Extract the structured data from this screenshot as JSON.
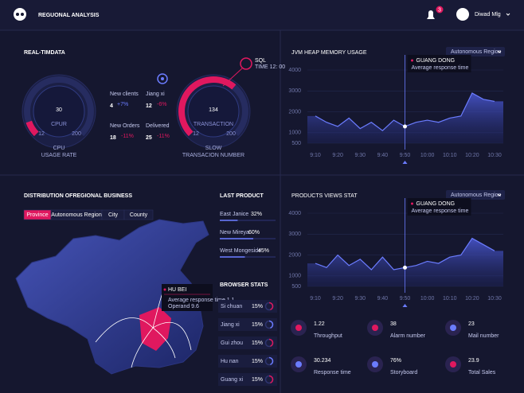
{
  "header": {
    "title": "REGUONAL ANALYSIS",
    "badge": "3",
    "user": "Diwad Mlg"
  },
  "realtime": {
    "title": "REAL-TIMDATA",
    "gauges": [
      {
        "value": 30,
        "min": 12,
        "max": 200,
        "inner": "CPUR",
        "label": [
          "CPU",
          "USAGE RATE"
        ]
      },
      {
        "value": 134,
        "min": 12,
        "max": 200,
        "inner": "TRANSACTION",
        "label": [
          "SLOW",
          "TRANSACION NUMBER"
        ]
      }
    ],
    "stats": [
      {
        "name": "New clients",
        "value": "4",
        "change": "+7%"
      },
      {
        "name": "Jiang xi",
        "value": "12",
        "change": "-6%"
      },
      {
        "name": "New Orders",
        "value": "18",
        "change": "-11%"
      },
      {
        "name": "Delivered",
        "value": "25",
        "change": "-11%"
      }
    ],
    "sql": {
      "title": "SQL",
      "time": "TIME 12: 00"
    }
  },
  "chart_data": [
    {
      "type": "line",
      "title": "JVM HEAP MEMORY USAGE",
      "dropdown": "Autonomous Region",
      "color": "#6b7cff",
      "categories": [
        "9:10",
        null,
        "9:20",
        null,
        "9:30",
        null,
        "9:40",
        null,
        "9:50",
        null,
        "10:00",
        null,
        "10:10",
        null,
        "10:20",
        null,
        "10:30"
      ],
      "values": [
        1800,
        1500,
        1300,
        1700,
        1200,
        1500,
        1100,
        1600,
        1300,
        1500,
        1600,
        1500,
        1700,
        1800,
        2900,
        2600,
        2500
      ],
      "ylim": [
        500,
        4000
      ],
      "yticks": [
        4000,
        3000,
        2000,
        1000,
        500
      ],
      "tooltip": {
        "title": "GUANG DONG",
        "text": "Average response time"
      }
    },
    {
      "type": "line",
      "title": "PRODUCTS VIEWS STAT",
      "dropdown": "Autonomous Region",
      "color": "#6b7cff",
      "categories": [
        "9:10",
        null,
        "9:20",
        null,
        "9:30",
        null,
        "9:40",
        null,
        "9:50",
        null,
        "10:00",
        null,
        "10:10",
        null,
        "10:20",
        null,
        "10:30"
      ],
      "values": [
        1600,
        1400,
        2000,
        1500,
        1800,
        1300,
        1900,
        1300,
        1400,
        1500,
        1700,
        1600,
        1900,
        2000,
        2800,
        2500,
        2200
      ],
      "ylim": [
        500,
        4000
      ],
      "yticks": [
        4000,
        3000,
        2000,
        1000,
        500
      ],
      "tooltip": {
        "title": "GUANG DONG",
        "text": "Average response time"
      }
    }
  ],
  "map": {
    "title": "DISTRIBUTION OFREGIONAL BUSINESS",
    "tabs": [
      "Province",
      "Autonomous Region",
      "City",
      "County"
    ],
    "tooltip": {
      "title": "HU BEI",
      "lines": [
        "Average response time 1.1",
        "Operand 9.6"
      ]
    }
  },
  "products": {
    "title": "LAST PRODUCT",
    "items": [
      {
        "name": "East Janice",
        "value": 32,
        "label": "32%"
      },
      {
        "name": "New Mireya",
        "value": 60,
        "label": "60%"
      },
      {
        "name": "West Mongeside",
        "value": 45,
        "label": "45%"
      }
    ]
  },
  "browser": {
    "title": "BROWSER STATS",
    "items": [
      {
        "name": "Si chuan",
        "value": 15,
        "label": "15%"
      },
      {
        "name": "Jiang xi",
        "value": 15,
        "label": "15%"
      },
      {
        "name": "Gui zhou",
        "value": 15,
        "label": "15%"
      },
      {
        "name": "Hu nan",
        "value": 15,
        "label": "15%"
      },
      {
        "name": "Guang xi",
        "value": 15,
        "label": "15%"
      }
    ]
  },
  "kpis": [
    {
      "value": "1.22",
      "label": "Throughput"
    },
    {
      "value": "38",
      "label": "Alarm number"
    },
    {
      "value": "23",
      "label": "Mail number"
    },
    {
      "value": "30.234",
      "label": "Response time"
    },
    {
      "value": "76%",
      "label": "Storyboard"
    },
    {
      "value": "23.9",
      "label": "Total Sales"
    }
  ]
}
